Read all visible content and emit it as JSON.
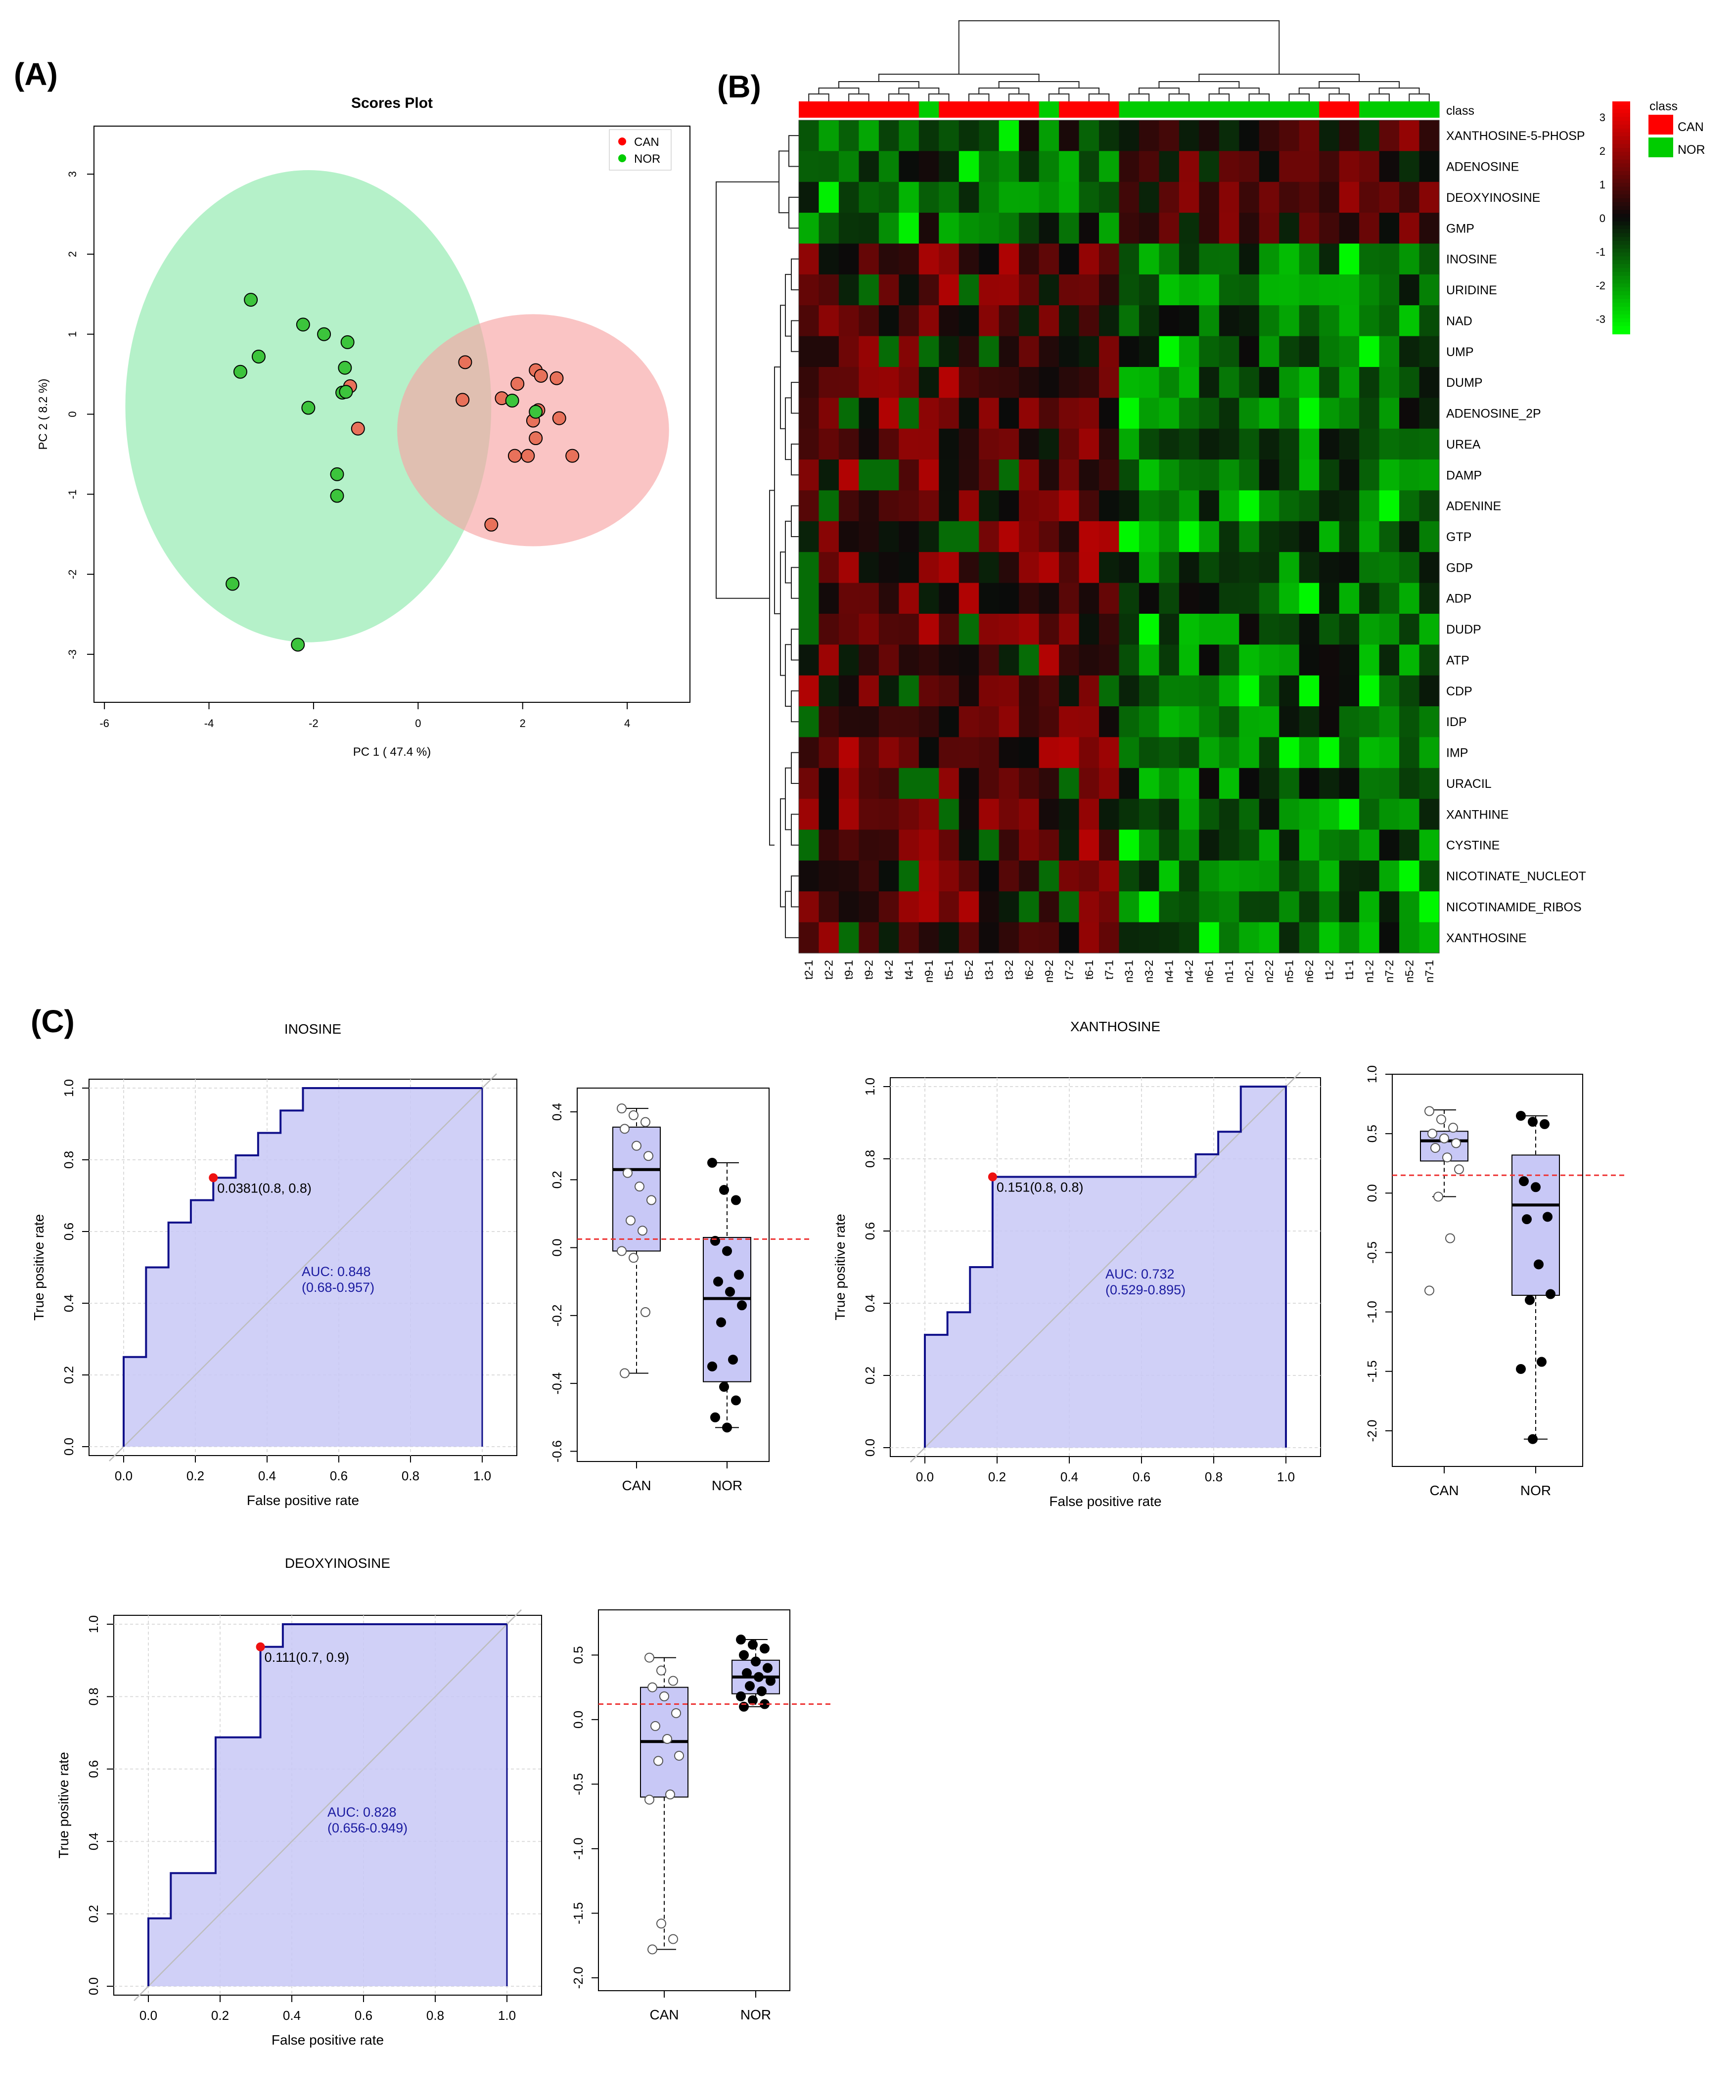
{
  "panel_labels": [
    "(A)",
    "(B)",
    "(C)"
  ],
  "chart_data": [
    {
      "id": "pca",
      "type": "scatter",
      "title": "Scores Plot",
      "xlabel": "PC 1 ( 47.4 %)",
      "ylabel": "PC 2 ( 8.2 %)",
      "xlim": [
        -6.2,
        5.2
      ],
      "ylim": [
        -3.6,
        3.6
      ],
      "xticks": [
        -6,
        -4,
        -2,
        0,
        2,
        4
      ],
      "yticks": [
        -3,
        -2,
        -1,
        0,
        1,
        2,
        3
      ],
      "legend_position": "top-right",
      "series": [
        {
          "name": "CAN",
          "color": "#e8715a",
          "legend_color": "#ff0000",
          "ellipse": {
            "cx": 2.2,
            "cy": -0.2,
            "rx": 2.6,
            "ry": 1.45,
            "color": "#f8a5a5"
          },
          "points": [
            [
              0.9,
              0.65
            ],
            [
              0.85,
              0.18
            ],
            [
              1.6,
              0.2
            ],
            [
              1.9,
              0.38
            ],
            [
              2.25,
              0.55
            ],
            [
              2.35,
              0.48
            ],
            [
              2.65,
              0.45
            ],
            [
              2.3,
              0.05
            ],
            [
              2.2,
              -0.08
            ],
            [
              2.7,
              -0.05
            ],
            [
              2.25,
              -0.3
            ],
            [
              2.95,
              -0.52
            ],
            [
              1.85,
              -0.52
            ],
            [
              2.1,
              -0.52
            ],
            [
              1.4,
              -1.38
            ],
            [
              -1.3,
              0.35
            ],
            [
              -1.15,
              -0.18
            ]
          ]
        },
        {
          "name": "NOR",
          "color": "#3cc43c",
          "legend_color": "#00cc00",
          "ellipse": {
            "cx": -2.1,
            "cy": 0.1,
            "rx": 3.5,
            "ry": 2.95,
            "color": "#a8eec0"
          },
          "points": [
            [
              -3.2,
              1.43
            ],
            [
              -2.2,
              1.12
            ],
            [
              -1.8,
              1.0
            ],
            [
              -1.35,
              0.9
            ],
            [
              -3.05,
              0.72
            ],
            [
              -3.4,
              0.53
            ],
            [
              -1.4,
              0.58
            ],
            [
              -1.45,
              0.27
            ],
            [
              -1.38,
              0.28
            ],
            [
              -2.1,
              0.08
            ],
            [
              -1.55,
              -0.75
            ],
            [
              -1.55,
              -1.02
            ],
            [
              1.8,
              0.17
            ],
            [
              2.25,
              0.03
            ],
            [
              -3.55,
              -2.12
            ],
            [
              -2.3,
              -2.88
            ]
          ]
        }
      ]
    },
    {
      "id": "heatmap",
      "type": "heatmap",
      "legend_title": "class",
      "legend_labels": [
        "CAN",
        "NOR"
      ],
      "legend_colors": [
        "#ff0000",
        "#00cc00"
      ],
      "class_label": "class",
      "scale_ticks": [
        "3",
        "2",
        "1",
        "0",
        "-1",
        "-2",
        "-3"
      ],
      "rows": [
        "XANTHOSINE-5-PHOSP",
        "ADENOSINE",
        "DEOXYINOSINE",
        "GMP",
        "INOSINE",
        "URIDINE",
        "NAD",
        "UMP",
        "DUMP",
        "ADENOSINE_2P",
        "UREA",
        "DAMP",
        "ADENINE",
        "GTP",
        "GDP",
        "ADP",
        "DUDP",
        "ATP",
        "CDP",
        "IDP",
        "IMP",
        "URACIL",
        "XANTHINE",
        "CYSTINE",
        "NICOTINATE_NUCLEOT",
        "NICOTINAMIDE_RIBOS",
        "XANTHOSINE"
      ],
      "columns": [
        "t2-1",
        "t2-2",
        "t9-1",
        "t9-2",
        "t4-2",
        "t4-1",
        "n9-1",
        "t5-1",
        "t5-2",
        "t3-1",
        "t3-2",
        "t6-2",
        "n9-2",
        "t7-2",
        "t6-1",
        "t7-1",
        "n3-1",
        "n3-2",
        "n4-1",
        "n4-2",
        "n6-1",
        "n1-1",
        "n2-1",
        "n2-2",
        "n5-1",
        "n6-2",
        "t1-2",
        "t1-1",
        "n1-2",
        "n7-2",
        "n5-2",
        "n7-1"
      ],
      "column_classes": [
        "CAN",
        "CAN",
        "CAN",
        "CAN",
        "CAN",
        "CAN",
        "NOR",
        "CAN",
        "CAN",
        "CAN",
        "CAN",
        "CAN",
        "NOR",
        "CAN",
        "CAN",
        "CAN",
        "NOR",
        "NOR",
        "NOR",
        "NOR",
        "NOR",
        "NOR",
        "NOR",
        "NOR",
        "NOR",
        "NOR",
        "CAN",
        "CAN",
        "NOR",
        "NOR",
        "NOR",
        "NOR"
      ]
    },
    {
      "id": "roc-inosine",
      "type": "line",
      "title": "INOSINE",
      "xlabel": "False positive rate",
      "ylabel": "True positive rate",
      "xlim": [
        0,
        1
      ],
      "ylim": [
        0,
        1
      ],
      "ticks": [
        "0.0",
        "0.2",
        "0.4",
        "0.6",
        "0.8",
        "1.0"
      ],
      "grid": true,
      "x": [
        0,
        0,
        0.0625,
        0.0625,
        0.125,
        0.125,
        0.1875,
        0.1875,
        0.25,
        0.25,
        0.3125,
        0.3125,
        0.375,
        0.375,
        0.4375,
        0.4375,
        0.5,
        0.5,
        1
      ],
      "y": [
        0,
        0.25,
        0.25,
        0.5,
        0.5,
        0.625,
        0.625,
        0.6875,
        0.6875,
        0.75,
        0.75,
        0.8125,
        0.8125,
        0.875,
        0.875,
        0.9375,
        0.9375,
        1,
        1
      ],
      "threshold_point": [
        0.25,
        0.75
      ],
      "threshold_label": "0.0381(0.8, 0.8)",
      "auc_label": "AUC: 0.848",
      "ci_label": "(0.68-0.957)"
    },
    {
      "id": "box-inosine",
      "type": "box",
      "categories": [
        "CAN",
        "NOR"
      ],
      "ylim": [
        -0.63,
        0.47
      ],
      "yticks": [
        "0.4",
        "0.2",
        "0.0",
        "-0.2",
        "-0.4",
        "-0.6"
      ],
      "ytick_values": [
        0.4,
        0.2,
        0.0,
        -0.2,
        -0.4,
        -0.6
      ],
      "cutoff": 0.025,
      "boxes": [
        {
          "q1": -0.01,
          "median": 0.23,
          "q3": 0.355,
          "wlow": -0.37,
          "whigh": 0.41,
          "filled": false,
          "points": [
            0.41,
            0.39,
            0.37,
            0.35,
            0.3,
            0.27,
            0.22,
            0.18,
            0.14,
            0.08,
            0.05,
            -0.01,
            -0.03,
            -0.19,
            -0.37
          ]
        },
        {
          "q1": -0.395,
          "median": -0.15,
          "q3": 0.03,
          "wlow": -0.53,
          "whigh": 0.25,
          "filled": true,
          "points": [
            0.25,
            0.17,
            0.14,
            0.02,
            -0.01,
            -0.08,
            -0.1,
            -0.13,
            -0.17,
            -0.22,
            -0.33,
            -0.35,
            -0.41,
            -0.45,
            -0.5,
            -0.53
          ]
        }
      ]
    },
    {
      "id": "roc-xanthosine",
      "type": "line",
      "title": "XANTHOSINE",
      "xlabel": "False positive rate",
      "ylabel": "True positive rate",
      "xlim": [
        0,
        1
      ],
      "ylim": [
        0,
        1
      ],
      "ticks": [
        "0.0",
        "0.2",
        "0.4",
        "0.6",
        "0.8",
        "1.0"
      ],
      "grid": true,
      "x": [
        0,
        0,
        0.0625,
        0.0625,
        0.125,
        0.125,
        0.1875,
        0.1875,
        0.75,
        0.75,
        0.8125,
        0.8125,
        0.875,
        0.875,
        1,
        1
      ],
      "y": [
        0,
        0.3125,
        0.3125,
        0.375,
        0.375,
        0.5,
        0.5,
        0.75,
        0.75,
        0.8125,
        0.8125,
        0.875,
        0.875,
        1,
        1,
        0
      ],
      "threshold_point": [
        0.1875,
        0.75
      ],
      "threshold_label": "0.151(0.8, 0.8)",
      "auc_label": "AUC: 0.732",
      "ci_label": "(0.529-0.895)"
    },
    {
      "id": "box-xanthosine",
      "type": "box",
      "categories": [
        "CAN",
        "NOR"
      ],
      "ylim": [
        -2.3,
        1.0
      ],
      "yticks": [
        "1.0",
        "0.5",
        "0.0",
        "-0.5",
        "-1.0",
        "-1.5",
        "-2.0"
      ],
      "ytick_values": [
        1.0,
        0.5,
        0.0,
        -0.5,
        -1.0,
        -1.5,
        -2.0
      ],
      "cutoff": 0.15,
      "boxes": [
        {
          "q1": 0.27,
          "median": 0.44,
          "q3": 0.52,
          "wlow": -0.03,
          "whigh": 0.7,
          "filled": false,
          "points": [
            0.69,
            0.62,
            0.55,
            0.5,
            0.46,
            0.42,
            0.38,
            0.3,
            0.2,
            -0.03,
            -0.38,
            -0.82
          ]
        },
        {
          "q1": -0.86,
          "median": -0.1,
          "q3": 0.32,
          "wlow": -2.07,
          "whigh": 0.65,
          "filled": true,
          "points": [
            0.65,
            0.6,
            0.58,
            0.1,
            0.05,
            -0.2,
            -0.22,
            -0.6,
            -0.85,
            -0.9,
            -1.42,
            -1.48,
            -2.07
          ]
        }
      ]
    },
    {
      "id": "roc-deoxyinosine",
      "type": "line",
      "title": "DEOXYINOSINE",
      "xlabel": "False positive rate",
      "ylabel": "True positive rate",
      "xlim": [
        0,
        1
      ],
      "ylim": [
        0,
        1
      ],
      "ticks": [
        "0.0",
        "0.2",
        "0.4",
        "0.6",
        "0.8",
        "1.0"
      ],
      "grid": true,
      "x": [
        0,
        0,
        0.0625,
        0.0625,
        0.1875,
        0.1875,
        0.3125,
        0.3125,
        0.375,
        0.375,
        1
      ],
      "y": [
        0,
        0.1875,
        0.1875,
        0.3125,
        0.3125,
        0.6875,
        0.6875,
        0.9375,
        0.9375,
        1,
        1
      ],
      "threshold_point": [
        0.3125,
        0.9375
      ],
      "threshold_label": "0.111(0.7, 0.9)",
      "auc_label": "AUC: 0.828",
      "ci_label": "(0.656-0.949)"
    },
    {
      "id": "box-deoxyinosine",
      "type": "box",
      "categories": [
        "CAN",
        "NOR"
      ],
      "ylim": [
        -2.1,
        0.85
      ],
      "yticks": [
        "0.5",
        "0.0",
        "-0.5",
        "-1.0",
        "-1.5",
        "-2.0"
      ],
      "ytick_values": [
        0.5,
        0.0,
        -0.5,
        -1.0,
        -1.5,
        -2.0
      ],
      "cutoff": 0.12,
      "boxes": [
        {
          "q1": -0.6,
          "median": -0.17,
          "q3": 0.25,
          "wlow": -1.78,
          "whigh": 0.48,
          "filled": false,
          "points": [
            0.48,
            0.38,
            0.3,
            0.25,
            0.18,
            0.05,
            -0.05,
            -0.15,
            -0.28,
            -0.32,
            -0.58,
            -0.62,
            -1.58,
            -1.7,
            -1.78
          ]
        },
        {
          "q1": 0.2,
          "median": 0.33,
          "q3": 0.46,
          "wlow": 0.1,
          "whigh": 0.62,
          "filled": true,
          "points": [
            0.62,
            0.58,
            0.55,
            0.5,
            0.45,
            0.4,
            0.36,
            0.33,
            0.3,
            0.26,
            0.22,
            0.18,
            0.15,
            0.12,
            0.1
          ]
        }
      ]
    }
  ]
}
